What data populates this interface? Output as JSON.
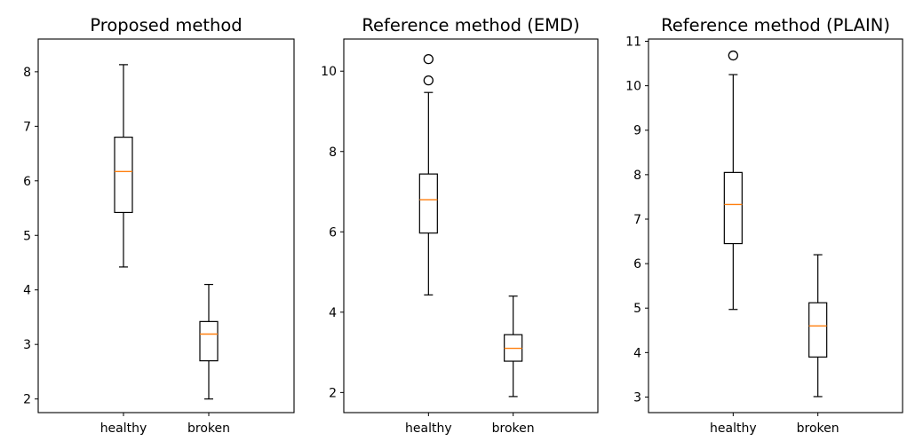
{
  "chart_data": [
    {
      "type": "boxplot",
      "title": "Proposed method",
      "categories": [
        "healthy",
        "broken"
      ],
      "ylim": [
        1.75,
        8.6
      ],
      "yticks": [
        2,
        3,
        4,
        5,
        6,
        7,
        8
      ],
      "grid": false,
      "boxes": [
        {
          "category": "healthy",
          "whisker_low": 4.42,
          "q1": 5.42,
          "median": 6.17,
          "q3": 6.8,
          "whisker_high": 8.13,
          "outliers": []
        },
        {
          "category": "broken",
          "whisker_low": 2.0,
          "q1": 2.7,
          "median": 3.19,
          "q3": 3.42,
          "whisker_high": 4.1,
          "outliers": []
        }
      ]
    },
    {
      "type": "boxplot",
      "title": "Reference method (EMD)",
      "categories": [
        "healthy",
        "broken"
      ],
      "ylim": [
        1.5,
        10.8
      ],
      "yticks": [
        2,
        4,
        6,
        8,
        10
      ],
      "grid": false,
      "boxes": [
        {
          "category": "healthy",
          "whisker_low": 4.43,
          "q1": 5.97,
          "median": 6.8,
          "q3": 7.44,
          "whisker_high": 9.47,
          "outliers": [
            9.77,
            10.3
          ]
        },
        {
          "category": "broken",
          "whisker_low": 1.9,
          "q1": 2.78,
          "median": 3.1,
          "q3": 3.44,
          "whisker_high": 4.4,
          "outliers": []
        }
      ]
    },
    {
      "type": "boxplot",
      "title": "Reference method (PLAIN)",
      "categories": [
        "healthy",
        "broken"
      ],
      "ylim": [
        2.65,
        11.05
      ],
      "yticks": [
        3,
        4,
        5,
        6,
        7,
        8,
        9,
        10,
        11
      ],
      "grid": false,
      "boxes": [
        {
          "category": "healthy",
          "whisker_low": 4.97,
          "q1": 6.45,
          "median": 7.33,
          "q3": 8.05,
          "whisker_high": 10.25,
          "outliers": [
            10.68
          ]
        },
        {
          "category": "broken",
          "whisker_low": 3.01,
          "q1": 3.9,
          "median": 4.6,
          "q3": 5.12,
          "whisker_high": 6.2,
          "outliers": []
        }
      ]
    }
  ],
  "colors": {
    "box": "#000000",
    "median": "#ff7f0e",
    "background": "#ffffff"
  }
}
